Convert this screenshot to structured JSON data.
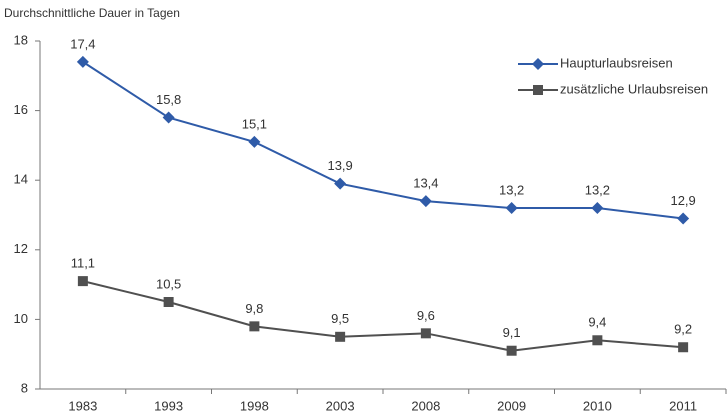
{
  "chart_data": {
    "type": "line",
    "title": "Durchschnittliche Dauer in Tagen",
    "categories": [
      "1983",
      "1993",
      "1998",
      "2003",
      "2008",
      "2009",
      "2010",
      "2011"
    ],
    "series": [
      {
        "name": "Haupturlaubsreisen",
        "color": "#2f5ba8",
        "marker": "diamond",
        "values": [
          17.4,
          15.8,
          15.1,
          13.9,
          13.4,
          13.2,
          13.2,
          12.9
        ],
        "value_labels": [
          "17,4",
          "15,8",
          "15,1",
          "13,9",
          "13,4",
          "13,2",
          "13,2",
          "12,9"
        ]
      },
      {
        "name": "zusätzliche Urlaubsreisen",
        "color": "#505050",
        "marker": "square",
        "values": [
          11.1,
          10.5,
          9.8,
          9.5,
          9.6,
          9.1,
          9.4,
          9.2
        ],
        "value_labels": [
          "11,1",
          "10,5",
          "9,8",
          "9,5",
          "9,6",
          "9,1",
          "9,4",
          "9,2"
        ]
      }
    ],
    "ylim": [
      8,
      18
    ],
    "yticks": [
      8,
      10,
      12,
      14,
      16,
      18
    ],
    "grid": false,
    "legend": "upper right"
  }
}
